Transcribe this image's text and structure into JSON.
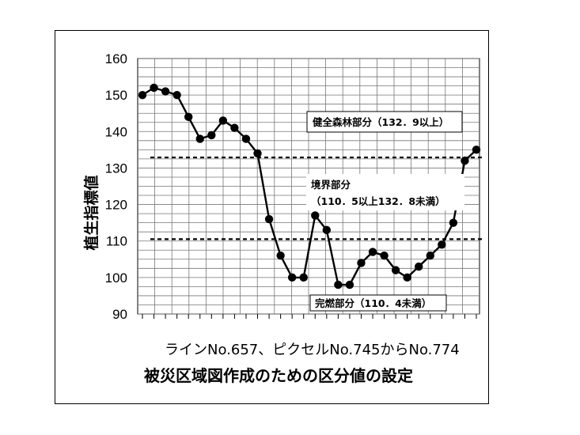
{
  "chart_data": {
    "type": "line",
    "ylabel": "植生指標値",
    "xlabel": "ラインNo.657、ピクセルNo.745からNo.774",
    "title": "被災区域図作成のための区分値の設定",
    "ylim": [
      90,
      160
    ],
    "yticks": [
      "160",
      "150",
      "140",
      "130",
      "120",
      "110",
      "100",
      "90"
    ],
    "grid": true,
    "series": [
      {
        "values": [
          150,
          152,
          151,
          150,
          144,
          138,
          139,
          143,
          141,
          138,
          134,
          116,
          106,
          100,
          100,
          117,
          113,
          98,
          98,
          104,
          107,
          106,
          102,
          100,
          103,
          106,
          109,
          115,
          132,
          135
        ]
      }
    ],
    "thresholds": [
      132.9,
      110.5
    ],
    "annotations": [
      {
        "text": "健全森林部分（132．9以上）"
      },
      {
        "text": "境界部分"
      },
      {
        "text": "（110．5以上132．8未満）"
      },
      {
        "text": "完燃部分（110．4未満）"
      }
    ]
  },
  "colors": {
    "line": "#000000",
    "grid": "#777777",
    "background": "#ffffff"
  }
}
